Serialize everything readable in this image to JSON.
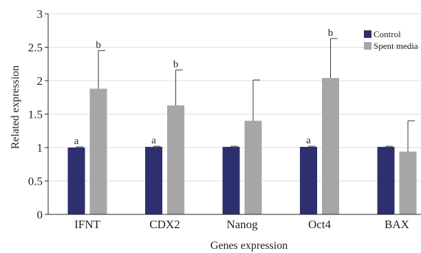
{
  "chart_data": {
    "type": "bar",
    "title": "",
    "xlabel": "Genes expression",
    "ylabel": "Related expression",
    "ylim": [
      0,
      3
    ],
    "yticks": [
      "0",
      "0.5",
      "1",
      "1.5",
      "2",
      "2.5",
      "3"
    ],
    "yticks_values": [
      0,
      0.5,
      1,
      1.5,
      2,
      2.5,
      3
    ],
    "grid": true,
    "legend_position": "top-right",
    "categories": [
      "IFNT",
      "CDX2",
      "Nanog",
      "Oct4",
      "BAX"
    ],
    "series": [
      {
        "name": "Control",
        "color": "#2e2f6e",
        "values": [
          1.0,
          1.01,
          1.01,
          1.01,
          1.01
        ],
        "error": [
          0.01,
          0.01,
          0.01,
          0.01,
          0.01
        ],
        "labels": [
          "a",
          "a",
          "",
          "a",
          ""
        ]
      },
      {
        "name": "Spent media",
        "color": "#a6a6a6",
        "values": [
          1.88,
          1.63,
          1.4,
          2.04,
          0.94
        ],
        "error": [
          0.57,
          0.53,
          0.61,
          0.59,
          0.46
        ],
        "labels": [
          "b",
          "b",
          "",
          "b",
          ""
        ]
      }
    ]
  }
}
